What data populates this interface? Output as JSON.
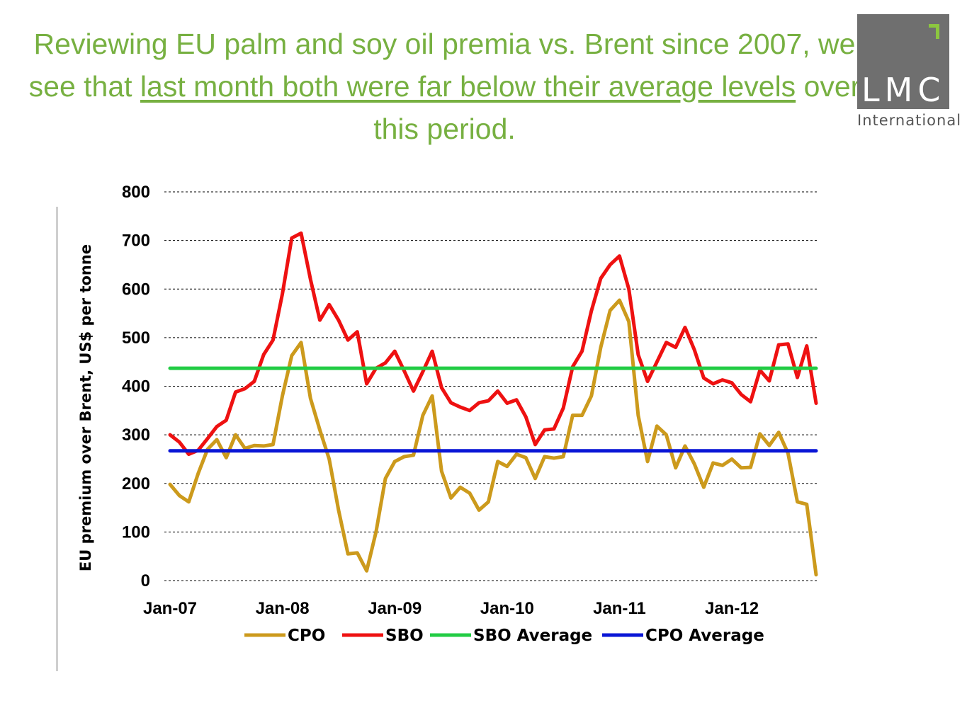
{
  "header": {
    "title_part1": "Reviewing EU palm and soy oil premia vs. Brent since 2007, we see that ",
    "title_underlined": "last month both were far below their average levels",
    "title_part2": " over this period."
  },
  "logo": {
    "main": "LMC",
    "sub": "International"
  },
  "colors": {
    "title": "#77b041",
    "cpo": "#cc9a1c",
    "sbo": "#ee1111",
    "sbo_average": "#22cc44",
    "cpo_average": "#0a16d6"
  },
  "chart_data": {
    "type": "line",
    "title": "",
    "xlabel": "",
    "ylabel": "EU premium over Brent, US$ per tonne",
    "ylim": [
      0,
      800
    ],
    "yticks": [
      0,
      100,
      200,
      300,
      400,
      500,
      600,
      700,
      800
    ],
    "xticks": [
      {
        "label": "Jan-07",
        "index": 0
      },
      {
        "label": "Jan-08",
        "index": 12
      },
      {
        "label": "Jan-09",
        "index": 24
      },
      {
        "label": "Jan-10",
        "index": 36
      },
      {
        "label": "Jan-11",
        "index": 48
      },
      {
        "label": "Jan-12",
        "index": 60
      }
    ],
    "start_month": "Jan-07",
    "grid": "horizontal dashed",
    "legend_position": "bottom",
    "series": [
      {
        "name": "CPO",
        "color": "#cc9a1c",
        "values": [
          198,
          175,
          162,
          220,
          270,
          290,
          253,
          300,
          272,
          278,
          277,
          280,
          380,
          463,
          490,
          375,
          310,
          250,
          145,
          55,
          57,
          20,
          100,
          210,
          245,
          255,
          258,
          340,
          380,
          225,
          170,
          192,
          180,
          145,
          162,
          245,
          235,
          260,
          253,
          210,
          255,
          252,
          255,
          340,
          340,
          380,
          480,
          556,
          577,
          533,
          340,
          245,
          318,
          300,
          232,
          277,
          240,
          192,
          242,
          237,
          250,
          232,
          233,
          302,
          278,
          305,
          262,
          162,
          157,
          12
        ]
      },
      {
        "name": "SBO",
        "color": "#ee1111",
        "values": [
          300,
          285,
          260,
          268,
          292,
          317,
          330,
          388,
          395,
          410,
          465,
          495,
          590,
          705,
          715,
          620,
          536,
          568,
          536,
          495,
          512,
          405,
          437,
          448,
          472,
          432,
          390,
          430,
          472,
          397,
          366,
          357,
          350,
          366,
          370,
          390,
          365,
          372,
          337,
          280,
          310,
          312,
          355,
          440,
          472,
          555,
          622,
          650,
          668,
          600,
          465,
          410,
          450,
          490,
          480,
          521,
          475,
          417,
          405,
          413,
          407,
          383,
          368,
          433,
          411,
          485,
          487,
          418,
          483,
          365
        ]
      },
      {
        "name": "SBO Average",
        "color": "#22cc44",
        "values": [
          437
        ]
      },
      {
        "name": "CPO Average",
        "color": "#0a16d6",
        "values": [
          267
        ]
      }
    ]
  }
}
